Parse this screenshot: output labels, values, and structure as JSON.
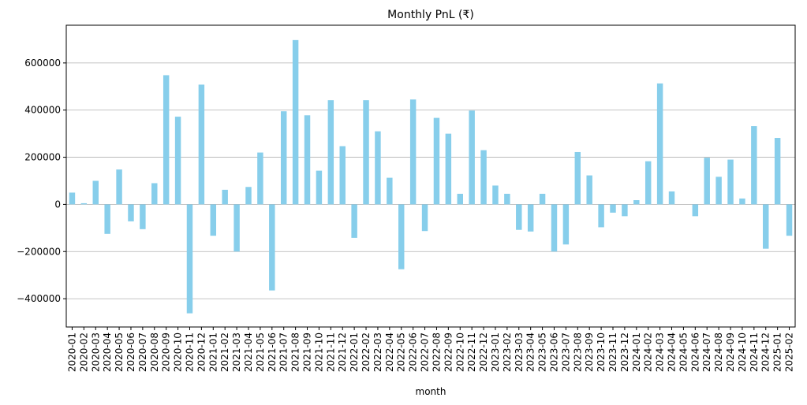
{
  "chart_data": {
    "type": "bar",
    "title": "Monthly PnL (₹)",
    "xlabel": "month",
    "ylabel": "",
    "ylim": [
      -520000,
      760000
    ],
    "yticks": [
      -400000,
      -200000,
      0,
      200000,
      400000,
      600000
    ],
    "ytick_labels": [
      "−400000",
      "−200000",
      "0",
      "200000",
      "400000",
      "600000"
    ],
    "grid": "y-major",
    "bar_color": "#87ceeb",
    "categories": [
      "2020-01",
      "2020-02",
      "2020-03",
      "2020-04",
      "2020-05",
      "2020-06",
      "2020-07",
      "2020-08",
      "2020-09",
      "2020-10",
      "2020-11",
      "2020-12",
      "2021-01",
      "2021-02",
      "2021-03",
      "2021-04",
      "2021-05",
      "2021-06",
      "2021-07",
      "2021-08",
      "2021-09",
      "2021-10",
      "2021-11",
      "2021-12",
      "2022-01",
      "2022-02",
      "2022-03",
      "2022-04",
      "2022-05",
      "2022-06",
      "2022-07",
      "2022-08",
      "2022-09",
      "2022-10",
      "2022-11",
      "2022-12",
      "2023-01",
      "2023-02",
      "2023-03",
      "2023-04",
      "2023-05",
      "2023-06",
      "2023-07",
      "2023-08",
      "2023-09",
      "2023-10",
      "2023-11",
      "2023-12",
      "2024-01",
      "2024-02",
      "2024-03",
      "2024-04",
      "2024-05",
      "2024-06",
      "2024-07",
      "2024-08",
      "2024-09",
      "2024-10",
      "2024-11",
      "2024-12",
      "2025-01",
      "2025-02"
    ],
    "values": [
      50000,
      5000,
      100000,
      -125000,
      148000,
      -72000,
      -105000,
      90000,
      548000,
      372000,
      -462000,
      508000,
      -133000,
      62000,
      -200000,
      74000,
      220000,
      -365000,
      395000,
      697000,
      378000,
      143000,
      442000,
      247000,
      -142000,
      442000,
      310000,
      113000,
      -275000,
      445000,
      -113000,
      367000,
      300000,
      45000,
      398000,
      230000,
      80000,
      45000,
      -108000,
      -115000,
      45000,
      -200000,
      -170000,
      222000,
      123000,
      -97000,
      -35000,
      -50000,
      18000,
      183000,
      513000,
      55000,
      0,
      -50000,
      198000,
      117000,
      190000,
      25000,
      332000,
      -188000,
      282000,
      -133000
    ]
  }
}
